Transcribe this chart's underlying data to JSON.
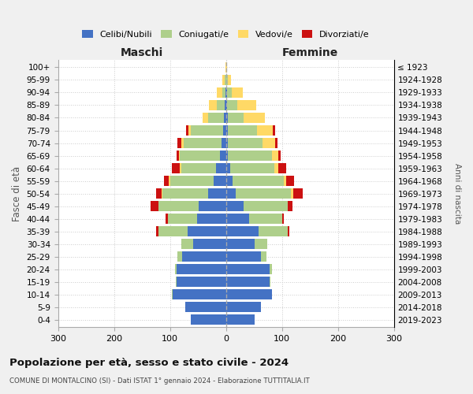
{
  "age_groups": [
    "0-4",
    "5-9",
    "10-14",
    "15-19",
    "20-24",
    "25-29",
    "30-34",
    "35-39",
    "40-44",
    "45-49",
    "50-54",
    "55-59",
    "60-64",
    "65-69",
    "70-74",
    "75-79",
    "80-84",
    "85-89",
    "90-94",
    "95-99",
    "100+"
  ],
  "birth_years": [
    "2019-2023",
    "2014-2018",
    "2009-2013",
    "2004-2008",
    "1999-2003",
    "1994-1998",
    "1989-1993",
    "1984-1988",
    "1979-1983",
    "1974-1978",
    "1969-1973",
    "1964-1968",
    "1959-1963",
    "1954-1958",
    "1949-1953",
    "1944-1948",
    "1939-1943",
    "1934-1938",
    "1929-1933",
    "1924-1928",
    "≤ 1923"
  ],
  "colors": {
    "celibi": "#4472C4",
    "coniugati": "#AECF8B",
    "vedovi": "#FFD966",
    "divorziati": "#CC1111"
  },
  "males": {
    "celibi": [
      63,
      72,
      95,
      88,
      88,
      78,
      58,
      68,
      52,
      48,
      32,
      22,
      18,
      10,
      8,
      5,
      4,
      2,
      1,
      0,
      0
    ],
    "coniugati": [
      0,
      0,
      1,
      1,
      3,
      8,
      22,
      52,
      52,
      72,
      82,
      78,
      62,
      72,
      68,
      58,
      28,
      14,
      5,
      2,
      0
    ],
    "vedovi": [
      0,
      0,
      0,
      0,
      0,
      0,
      0,
      0,
      0,
      1,
      1,
      2,
      2,
      2,
      4,
      4,
      10,
      14,
      10,
      5,
      1
    ],
    "divorziati": [
      0,
      0,
      0,
      0,
      0,
      0,
      0,
      4,
      4,
      14,
      9,
      9,
      14,
      4,
      7,
      4,
      0,
      0,
      0,
      0,
      0
    ]
  },
  "females": {
    "celibi": [
      52,
      62,
      82,
      78,
      78,
      62,
      52,
      58,
      42,
      32,
      18,
      12,
      8,
      4,
      4,
      4,
      4,
      2,
      2,
      1,
      0
    ],
    "coniugati": [
      0,
      0,
      1,
      1,
      4,
      10,
      22,
      52,
      58,
      78,
      98,
      92,
      78,
      78,
      62,
      52,
      28,
      18,
      8,
      3,
      0
    ],
    "vedovi": [
      0,
      0,
      0,
      0,
      0,
      0,
      0,
      0,
      0,
      1,
      4,
      4,
      8,
      12,
      22,
      28,
      38,
      34,
      20,
      5,
      2
    ],
    "divorziati": [
      0,
      0,
      0,
      0,
      0,
      0,
      0,
      4,
      4,
      8,
      18,
      14,
      14,
      4,
      4,
      4,
      0,
      0,
      0,
      0,
      0
    ]
  },
  "xlim": 300,
  "title": "Popolazione per età, sesso e stato civile - 2024",
  "subtitle": "COMUNE DI MONTALCINO (SI) - Dati ISTAT 1° gennaio 2024 - Elaborazione TUTTITALIA.IT",
  "xlabel_left": "Maschi",
  "xlabel_right": "Femmine",
  "ylabel": "Fasce di età",
  "ylabel_right": "Anni di nascita",
  "legend_labels": [
    "Celibi/Nubili",
    "Coniugati/e",
    "Vedovi/e",
    "Divorziati/e"
  ]
}
